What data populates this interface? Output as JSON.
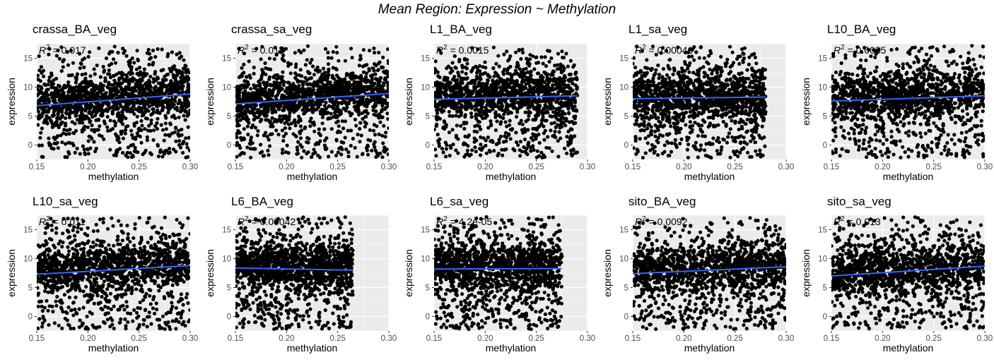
{
  "figure": {
    "title": "Mean Region: Expression ~ Methylation"
  },
  "style": {
    "panel_bg": "#EBEBEB",
    "grid_major": "#FFFFFF",
    "point_color": "#000000",
    "fit_color": "#3366FF",
    "text_color": "#000000",
    "tick_color": "#4D4D4D"
  },
  "chart_data": [
    {
      "type": "scatter",
      "title": "crassa_BA_veg",
      "xlabel": "methylation",
      "ylabel": "expression",
      "xlim": [
        0.15,
        0.3
      ],
      "ylim": [
        -2.5,
        17.5
      ],
      "xticks": [
        "0.15",
        "0.20",
        "0.25",
        "0.30"
      ],
      "yticks": [
        "0",
        "5",
        "10",
        "15"
      ],
      "grid": true,
      "annotation": "R^2 = 0.017",
      "r2": "0.017",
      "x_range": [
        0.15,
        0.3
      ],
      "fit": {
        "x": [
          0.15,
          0.3
        ],
        "y": [
          6.8,
          8.8
        ]
      },
      "points": "dense cloud, approx 5000 points"
    },
    {
      "type": "scatter",
      "title": "crassa_sa_veg",
      "xlabel": "methylation",
      "ylabel": "expression",
      "xlim": [
        0.15,
        0.3
      ],
      "ylim": [
        -2.5,
        17.5
      ],
      "xticks": [
        "0.15",
        "0.20",
        "0.25",
        "0.30"
      ],
      "yticks": [
        "0",
        "5",
        "10",
        "15"
      ],
      "grid": true,
      "annotation": "R^2 = 0.014",
      "r2": "0.014",
      "x_range": [
        0.15,
        0.3
      ],
      "fit": {
        "x": [
          0.15,
          0.3
        ],
        "y": [
          7.1,
          8.9
        ]
      },
      "points": "dense cloud, approx 5000 points"
    },
    {
      "type": "scatter",
      "title": "L1_BA_veg",
      "xlabel": "methylation",
      "ylabel": "expression",
      "xlim": [
        0.15,
        0.3
      ],
      "ylim": [
        -2.5,
        17.5
      ],
      "xticks": [
        "0.15",
        "0.20",
        "0.25",
        "0.30"
      ],
      "yticks": [
        "0",
        "5",
        "10",
        "15"
      ],
      "grid": true,
      "annotation": "R^2 = 0.0015",
      "r2": "0.0015",
      "x_range": [
        0.15,
        0.29
      ],
      "fit": {
        "x": [
          0.15,
          0.29
        ],
        "y": [
          7.9,
          8.5
        ]
      },
      "points": "dense cloud, approx 5000 points"
    },
    {
      "type": "scatter",
      "title": "L1_sa_veg",
      "xlabel": "methylation",
      "ylabel": "expression",
      "xlim": [
        0.15,
        0.3
      ],
      "ylim": [
        -2.5,
        17.5
      ],
      "xticks": [
        "0.15",
        "0.20",
        "0.25",
        "0.30"
      ],
      "yticks": [
        "0",
        "5",
        "10",
        "15"
      ],
      "grid": true,
      "annotation": "R^2 = 0.00046",
      "r2": "0.00046",
      "x_range": [
        0.15,
        0.28
      ],
      "fit": {
        "x": [
          0.15,
          0.28
        ],
        "y": [
          8.0,
          8.3
        ]
      },
      "points": "dense cloud, approx 5000 points"
    },
    {
      "type": "scatter",
      "title": "L10_BA_veg",
      "xlabel": "methylation",
      "ylabel": "expression",
      "xlim": [
        0.15,
        0.3
      ],
      "ylim": [
        -2.5,
        17.5
      ],
      "xticks": [
        "0.15",
        "0.20",
        "0.25",
        "0.30"
      ],
      "yticks": [
        "0",
        "5",
        "10",
        "15"
      ],
      "grid": true,
      "annotation": "R^2 = 0.0035",
      "r2": "0.0035",
      "x_range": [
        0.15,
        0.3
      ],
      "fit": {
        "x": [
          0.15,
          0.3
        ],
        "y": [
          7.6,
          8.5
        ]
      },
      "points": "dense cloud, approx 5000 points"
    },
    {
      "type": "scatter",
      "title": "L10_sa_veg",
      "xlabel": "methylation",
      "ylabel": "expression",
      "xlim": [
        0.15,
        0.3
      ],
      "ylim": [
        -2.5,
        17.5
      ],
      "xticks": [
        "0.15",
        "0.20",
        "0.25",
        "0.30"
      ],
      "yticks": [
        "0",
        "5",
        "10",
        "15"
      ],
      "grid": true,
      "annotation": "R^2 = 0.011",
      "r2": "0.011",
      "x_range": [
        0.15,
        0.3
      ],
      "fit": {
        "x": [
          0.15,
          0.3
        ],
        "y": [
          7.3,
          8.8
        ]
      },
      "points": "dense cloud, approx 5000 points"
    },
    {
      "type": "scatter",
      "title": "L6_BA_veg",
      "xlabel": "methylation",
      "ylabel": "expression",
      "xlim": [
        0.15,
        0.3
      ],
      "ylim": [
        -2.5,
        17.5
      ],
      "xticks": [
        "0.15",
        "0.20",
        "0.25",
        "0.30"
      ],
      "yticks": [
        "0",
        "5",
        "10",
        "15"
      ],
      "grid": true,
      "annotation": "R^2 = 0.00042",
      "r2": "0.00042",
      "x_range": [
        0.15,
        0.265
      ],
      "fit": {
        "x": [
          0.15,
          0.265
        ],
        "y": [
          8.4,
          8.0
        ]
      },
      "points": "dense cloud, approx 5000 points"
    },
    {
      "type": "scatter",
      "title": "L6_sa_veg",
      "xlabel": "methylation",
      "ylabel": "expression",
      "xlim": [
        0.15,
        0.3
      ],
      "ylim": [
        -2.5,
        17.5
      ],
      "xticks": [
        "0.15",
        "0.20",
        "0.25",
        "0.30"
      ],
      "yticks": [
        "0",
        "5",
        "10",
        "15"
      ],
      "grid": true,
      "annotation": "R^2 = 4.2e-05",
      "r2": "4.2e-05",
      "x_range": [
        0.15,
        0.275
      ],
      "fit": {
        "x": [
          0.15,
          0.275
        ],
        "y": [
          8.2,
          8.3
        ]
      },
      "points": "dense cloud, approx 5000 points"
    },
    {
      "type": "scatter",
      "title": "sito_BA_veg",
      "xlabel": "methylation",
      "ylabel": "expression",
      "xlim": [
        0.15,
        0.3
      ],
      "ylim": [
        -2.5,
        17.5
      ],
      "xticks": [
        "0.15",
        "0.20",
        "0.25",
        "0.30"
      ],
      "yticks": [
        "0",
        "5",
        "10",
        "15"
      ],
      "grid": true,
      "annotation": "R^2 = 0.0092",
      "r2": "0.0092",
      "x_range": [
        0.15,
        0.3
      ],
      "fit": {
        "x": [
          0.15,
          0.3
        ],
        "y": [
          7.4,
          8.6
        ]
      },
      "points": "dense cloud, approx 5000 points"
    },
    {
      "type": "scatter",
      "title": "sito_sa_veg",
      "xlabel": "methylation",
      "ylabel": "expression",
      "xlim": [
        0.15,
        0.3
      ],
      "ylim": [
        -2.5,
        17.5
      ],
      "xticks": [
        "0.15",
        "0.20",
        "0.25",
        "0.30"
      ],
      "yticks": [
        "0",
        "5",
        "10",
        "15"
      ],
      "grid": true,
      "annotation": "R^2 = 0.013",
      "r2": "0.013",
      "x_range": [
        0.15,
        0.3
      ],
      "fit": {
        "x": [
          0.15,
          0.3
        ],
        "y": [
          7.0,
          8.7
        ]
      },
      "points": "dense cloud, approx 5000 points"
    }
  ]
}
